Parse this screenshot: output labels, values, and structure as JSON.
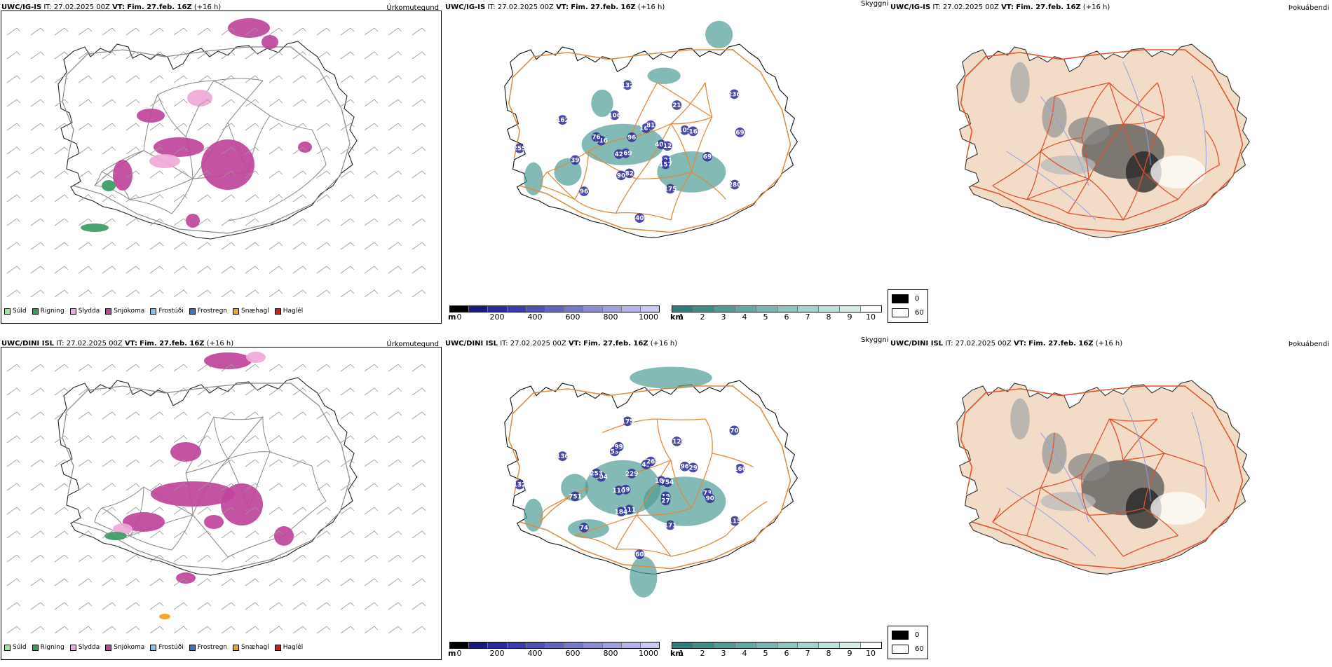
{
  "rows": [
    {
      "model": "UWC/IG-IS",
      "it_label": "IT:",
      "it_value": "27.02.2025 00Z",
      "vt_label": "VT:",
      "vt_value": "Fim. 27.feb. 16Z",
      "lead": "(+16 h)",
      "vis_labels": [
        "407",
        "369",
        "160",
        "121",
        "616",
        "109",
        "82",
        "106",
        "69",
        "39",
        "21",
        "175",
        "162",
        "69",
        "96",
        "132",
        "280",
        "255",
        "236",
        "40",
        "96",
        "12",
        "42",
        "81",
        "157",
        "76",
        "16",
        "90"
      ],
      "precip_blobs": "row1"
    },
    {
      "model": "UWC/DINI ISL",
      "it_label": "IT:",
      "it_value": "27.02.2025 00Z",
      "vt_label": "VT:",
      "vt_value": "Fim. 27.feb. 16Z",
      "lead": "(+16 h)",
      "vis_labels": [
        "108",
        "59",
        "49",
        "19",
        "604",
        "96",
        "111",
        "53",
        "73",
        "751",
        "12",
        "171",
        "136",
        "166",
        "74",
        "175",
        "115",
        "132",
        "70",
        "60",
        "229",
        "754",
        "110",
        "26",
        "27",
        "253",
        "29",
        "184",
        "99",
        "90"
      ],
      "precip_blobs": "row2"
    }
  ],
  "panel_titles": {
    "precip": "Úrkomutegund",
    "visibility": "Skyggni",
    "fog": "Þokuábendi"
  },
  "precip_legend": [
    {
      "label": "Súld",
      "color": "#9be89b"
    },
    {
      "label": "Rigning",
      "color": "#3a9a64"
    },
    {
      "label": "Slydda",
      "color": "#f0a8d8"
    },
    {
      "label": "Snjókoma",
      "color": "#c0449c"
    },
    {
      "label": "Frostúði",
      "color": "#8cc0ec"
    },
    {
      "label": "Frostregn",
      "color": "#3b74c0"
    },
    {
      "label": "Snæhagl",
      "color": "#f0a020"
    },
    {
      "label": "Haglél",
      "color": "#e01818"
    }
  ],
  "vis_colorbar_m": {
    "unit": "m",
    "ticks": [
      "0",
      "200",
      "400",
      "600",
      "800",
      "1000"
    ],
    "colors": [
      "#000000",
      "#1a1a7a",
      "#2b2b9a",
      "#3c3caa",
      "#5050b4",
      "#6464be",
      "#7878c8",
      "#8c8cd2",
      "#a0a0dc",
      "#b4b4e6",
      "#c8c8f0"
    ]
  },
  "vis_colorbar_km": {
    "unit": "km",
    "ticks": [
      "1",
      "2",
      "3",
      "4",
      "5",
      "6",
      "7",
      "8",
      "9",
      "10"
    ],
    "colors": [
      "#2e7f7f",
      "#3d8f8a",
      "#4e9d96",
      "#62aaa3",
      "#78b8b1",
      "#8fc5bf",
      "#a6d3cd",
      "#bfe0db",
      "#d6ece9",
      "#ffffff"
    ]
  },
  "fog_legend": [
    {
      "label": "0",
      "color": "#000000"
    },
    {
      "label": "60",
      "color": "#ffffff"
    }
  ]
}
